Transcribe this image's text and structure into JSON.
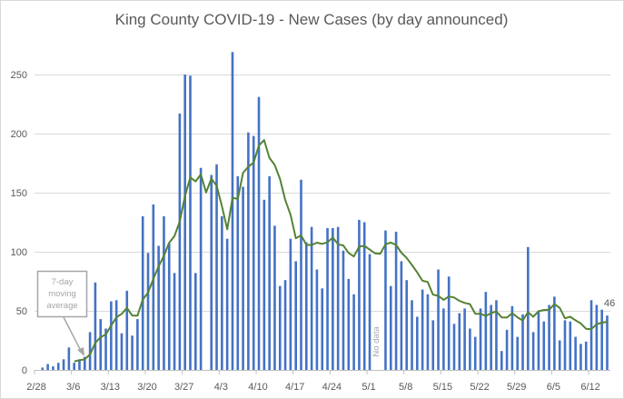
{
  "chart_data": {
    "type": "bar",
    "title": "King County COVID-19 - New Cases (by day announced)",
    "xlabel": "",
    "ylabel": "",
    "ylim": [
      0,
      300
    ],
    "yticks": [
      "0",
      "50",
      "100",
      "150",
      "200",
      "250"
    ],
    "ytick_values": [
      0,
      50,
      100,
      150,
      200,
      250
    ],
    "grid": true,
    "xtick_labels": [
      "2/28",
      "3/6",
      "3/13",
      "3/20",
      "3/27",
      "4/3",
      "4/10",
      "4/17",
      "4/24",
      "5/1",
      "5/8",
      "5/15",
      "5/22",
      "5/29",
      "6/5",
      "6/12"
    ],
    "xtick_every": 7,
    "categories": [
      "2/28",
      "2/29",
      "3/1",
      "3/2",
      "3/3",
      "3/4",
      "3/5",
      "3/6",
      "3/7",
      "3/8",
      "3/9",
      "3/10",
      "3/11",
      "3/12",
      "3/13",
      "3/14",
      "3/15",
      "3/16",
      "3/17",
      "3/18",
      "3/19",
      "3/20",
      "3/21",
      "3/22",
      "3/23",
      "3/24",
      "3/25",
      "3/26",
      "3/27",
      "3/28",
      "3/29",
      "3/30",
      "3/31",
      "4/1",
      "4/2",
      "4/3",
      "4/4",
      "4/5",
      "4/6",
      "4/7",
      "4/8",
      "4/9",
      "4/10",
      "4/11",
      "4/12",
      "4/13",
      "4/14",
      "4/15",
      "4/16",
      "4/17",
      "4/18",
      "4/19",
      "4/20",
      "4/21",
      "4/22",
      "4/23",
      "4/24",
      "4/25",
      "4/26",
      "4/27",
      "4/28",
      "4/29",
      "4/30",
      "5/1",
      "5/2",
      "5/3",
      "5/4",
      "5/5",
      "5/6",
      "5/7",
      "5/8",
      "5/9",
      "5/10",
      "5/11",
      "5/12",
      "5/13",
      "5/14",
      "5/15",
      "5/16",
      "5/17",
      "5/18",
      "5/19",
      "5/20",
      "5/21",
      "5/22",
      "5/23",
      "5/24",
      "5/25",
      "5/26",
      "5/27",
      "5/28",
      "5/29",
      "5/30",
      "5/31",
      "6/1",
      "6/2",
      "6/3",
      "6/4",
      "6/5",
      "6/6",
      "6/7",
      "6/8",
      "6/9",
      "6/10",
      "6/11",
      "6/12",
      "6/13",
      "6/14",
      "6/15"
    ],
    "series": [
      {
        "name": "New Cases",
        "type": "bar",
        "color": "#4472C4",
        "values": [
          0,
          2,
          5,
          3,
          6,
          9,
          19,
          6,
          9,
          11,
          32,
          74,
          43,
          35,
          58,
          59,
          31,
          67,
          29,
          43,
          130,
          99,
          140,
          105,
          130,
          107,
          82,
          217,
          250,
          249,
          82,
          171,
          0,
          165,
          174,
          130,
          111,
          269,
          164,
          155,
          201,
          198,
          231,
          144,
          164,
          122,
          71,
          76,
          111,
          92,
          161,
          108,
          121,
          85,
          69,
          120,
          120,
          121,
          101,
          77,
          64,
          127,
          125,
          98,
          null,
          null,
          118,
          71,
          117,
          92,
          76,
          59,
          45,
          68,
          64,
          42,
          85,
          52,
          79,
          39,
          48,
          52,
          35,
          28,
          52,
          66,
          55,
          59,
          16,
          34,
          54,
          28,
          47,
          104,
          32,
          49,
          41,
          55,
          62,
          25,
          42,
          41,
          28,
          22,
          24,
          59,
          55,
          51,
          46
        ]
      },
      {
        "name": "7-day moving average",
        "type": "line",
        "color": "#548235",
        "window": 7,
        "starts_at": "3/6"
      }
    ],
    "annotations": {
      "moving_average_note": [
        "7-day",
        "moving",
        "average"
      ],
      "no_data": "No data",
      "last_value_label": "46"
    }
  }
}
